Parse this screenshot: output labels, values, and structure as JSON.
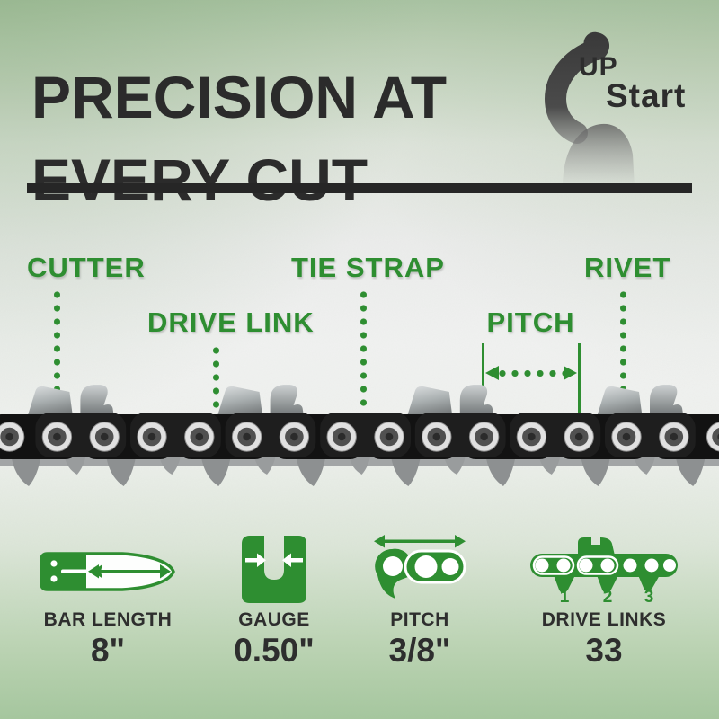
{
  "header": {
    "title_line1": "PRECISION AT",
    "title_line2": "EVERY CUT",
    "logo_up": "UP",
    "logo_start": "Start"
  },
  "chain_labels": {
    "cutter": "CUTTER",
    "drive_link": "DRIVE LINK",
    "tie_strap": "TIE STRAP",
    "pitch": "PITCH",
    "rivet": "RIVET"
  },
  "specs": [
    {
      "label": "BAR LENGTH",
      "value": "8\""
    },
    {
      "label": "GAUGE",
      "value": "0.50\""
    },
    {
      "label": "PITCH",
      "value": "3/8\""
    },
    {
      "label": "DRIVE LINKS",
      "value": "33",
      "link_numbers": [
        "1",
        "2",
        "3"
      ]
    }
  ],
  "colors": {
    "accent_green": "#2e8e31",
    "title_ink": "#2b2b2b"
  }
}
